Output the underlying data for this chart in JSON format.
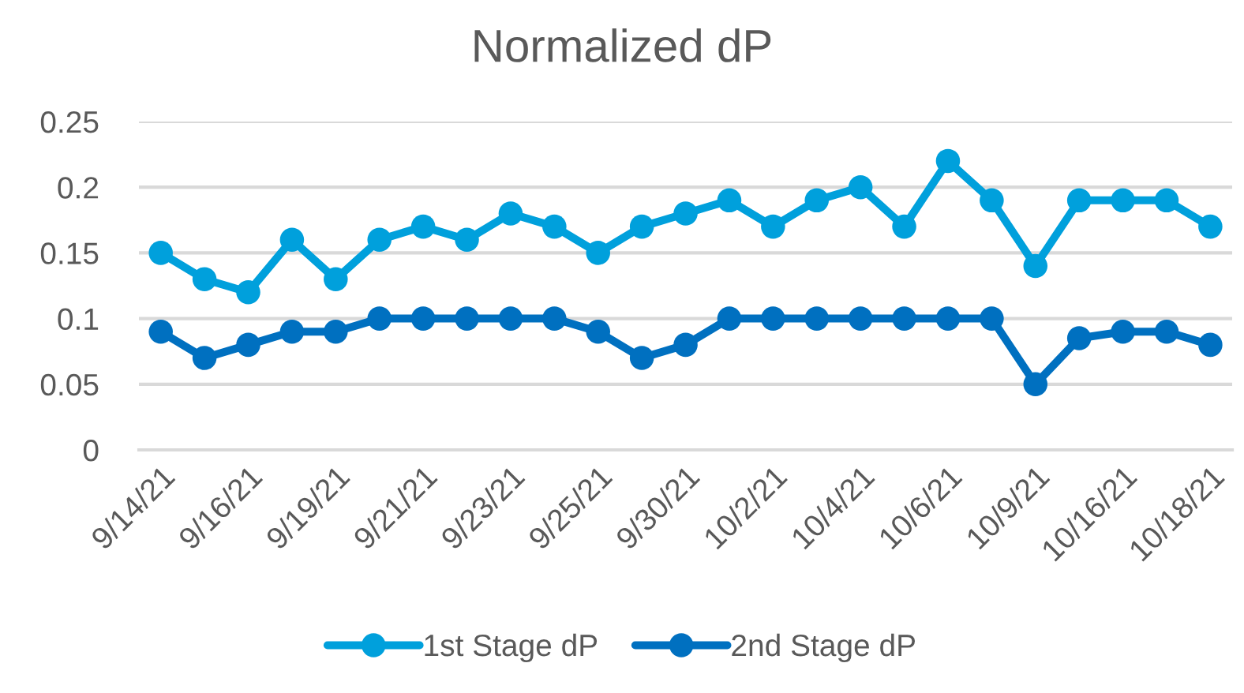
{
  "chart_data": {
    "type": "line",
    "title": "Normalized dP",
    "categories": [
      "9/14/21",
      null,
      "9/16/21",
      null,
      "9/19/21",
      null,
      "9/21/21",
      null,
      "9/23/21",
      null,
      "9/25/21",
      null,
      "9/30/21",
      null,
      "10/2/21",
      null,
      "10/4/21",
      null,
      "10/6/21",
      null,
      "10/9/21",
      null,
      "10/16/21",
      null,
      "10/18/21"
    ],
    "series": [
      {
        "name": "1st Stage dP",
        "color": "#00a0dc",
        "values": [
          0.15,
          0.13,
          0.12,
          0.16,
          0.13,
          0.16,
          0.17,
          0.16,
          0.18,
          0.17,
          0.15,
          0.17,
          0.18,
          0.19,
          0.17,
          0.19,
          0.2,
          0.17,
          0.22,
          0.19,
          0.14,
          0.19,
          0.19,
          0.19,
          0.17
        ]
      },
      {
        "name": "2nd Stage dP",
        "color": "#0070c0",
        "values": [
          0.09,
          0.07,
          0.08,
          0.09,
          0.09,
          0.1,
          0.1,
          0.1,
          0.1,
          0.1,
          0.09,
          0.07,
          0.08,
          0.1,
          0.1,
          0.1,
          0.1,
          0.1,
          0.1,
          0.1,
          0.05,
          0.085,
          0.09,
          0.09,
          0.08
        ]
      }
    ],
    "ylim": [
      0,
      0.25
    ],
    "yticks": [
      0,
      0.05,
      0.1,
      0.15,
      0.2,
      0.25
    ],
    "grid": "y",
    "legend": "bottom",
    "marker": "circle",
    "line_style": "solid"
  }
}
